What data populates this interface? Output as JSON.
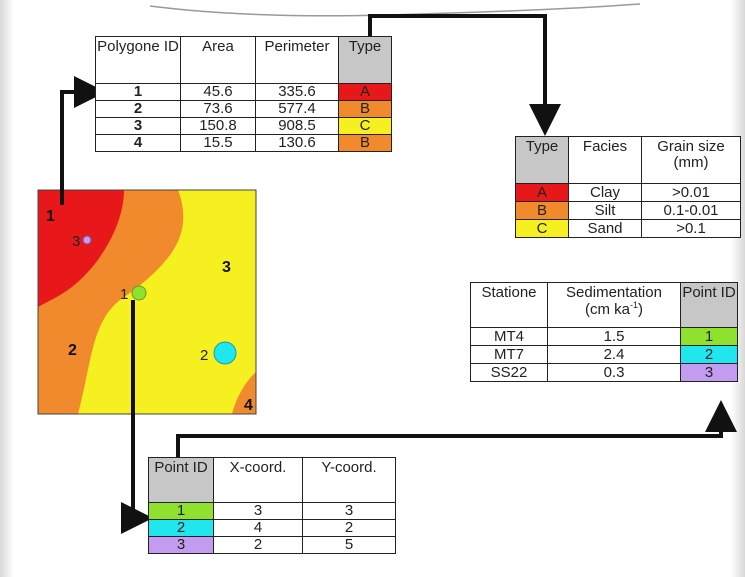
{
  "colors": {
    "type_A": "#e8181a",
    "type_B": "#f08a2c",
    "type_C": "#f6f020",
    "point_1": "#90e030",
    "point_2": "#22e6ee",
    "point_3": "#c39bf0",
    "header_grey": "#c7c7c7"
  },
  "polygon_table": {
    "headers": [
      "Polygone ID",
      "Area",
      "Perimeter",
      "Type"
    ],
    "rows": [
      {
        "id": "1",
        "area": "45.6",
        "perimeter": "335.6",
        "type": "A"
      },
      {
        "id": "2",
        "area": "73.6",
        "perimeter": "577.4",
        "type": "B"
      },
      {
        "id": "3",
        "area": "150.8",
        "perimeter": "908.5",
        "type": "C"
      },
      {
        "id": "4",
        "area": "15.5",
        "perimeter": "130.6",
        "type": "B"
      }
    ]
  },
  "facies_table": {
    "headers": [
      "Type",
      "Facies",
      "Grain size (mm)"
    ],
    "rows": [
      {
        "type": "A",
        "facies": "Clay",
        "grain": ">0.01"
      },
      {
        "type": "B",
        "facies": "Silt",
        "grain": "0.1-0.01"
      },
      {
        "type": "C",
        "facies": "Sand",
        "grain": ">0.1"
      }
    ]
  },
  "station_table": {
    "headers": [
      "Statione",
      "Sedimentation",
      "(cm ka",
      "-1",
      ")",
      "Point ID"
    ],
    "rows": [
      {
        "station": "MT4",
        "rate": "1.5",
        "point": "1"
      },
      {
        "station": "MT7",
        "rate": "2.4",
        "point": "2"
      },
      {
        "station": "SS22",
        "rate": "0.3",
        "point": "3"
      }
    ]
  },
  "point_table": {
    "headers": [
      "Point ID",
      "X-coord.",
      "Y-coord."
    ],
    "rows": [
      {
        "id": "1",
        "x": "3",
        "y": "3"
      },
      {
        "id": "2",
        "x": "4",
        "y": "2"
      },
      {
        "id": "3",
        "x": "2",
        "y": "5"
      }
    ]
  },
  "map": {
    "polygon_labels": [
      "1",
      "2",
      "3",
      "4"
    ],
    "point_labels": [
      "1",
      "2",
      "3"
    ]
  }
}
